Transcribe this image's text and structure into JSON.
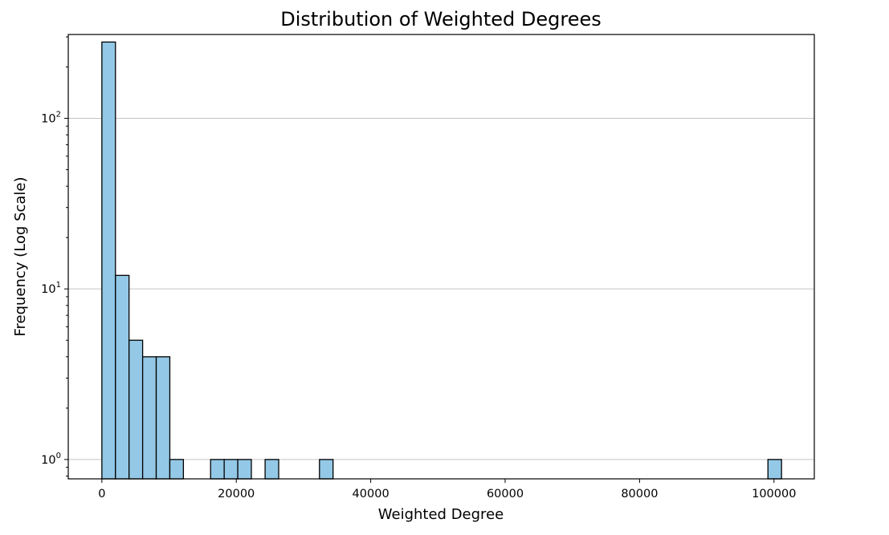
{
  "chart_data": {
    "type": "bar",
    "title": "Distribution of Weighted Degrees",
    "xlabel": "Weighted Degree",
    "ylabel": "Frequency (Log Scale)",
    "xlim": [
      -5000,
      106000
    ],
    "ylim": [
      0.77,
      310
    ],
    "y_scale": "log",
    "grid": "y",
    "bar_color": "#93c8e6",
    "edge_color": "#000000",
    "grid_color": "#c4c4c4",
    "x_ticks": [
      {
        "value": 0,
        "label": "0"
      },
      {
        "value": 20000,
        "label": "20000"
      },
      {
        "value": 40000,
        "label": "40000"
      },
      {
        "value": 60000,
        "label": "60000"
      },
      {
        "value": 80000,
        "label": "80000"
      },
      {
        "value": 100000,
        "label": "100000"
      }
    ],
    "y_ticks": [
      {
        "value": 1,
        "base": "10",
        "exp": "0"
      },
      {
        "value": 10,
        "base": "10",
        "exp": "1"
      },
      {
        "value": 100,
        "base": "10",
        "exp": "2"
      }
    ],
    "bins": [
      {
        "x0": 0,
        "x1": 2022,
        "count": 280
      },
      {
        "x0": 2022,
        "x1": 4044,
        "count": 12
      },
      {
        "x0": 4044,
        "x1": 6066,
        "count": 5
      },
      {
        "x0": 6066,
        "x1": 8088,
        "count": 4
      },
      {
        "x0": 8088,
        "x1": 10110,
        "count": 4
      },
      {
        "x0": 10110,
        "x1": 12132,
        "count": 1
      },
      {
        "x0": 16176,
        "x1": 18198,
        "count": 1
      },
      {
        "x0": 18198,
        "x1": 20220,
        "count": 1
      },
      {
        "x0": 20220,
        "x1": 22242,
        "count": 1
      },
      {
        "x0": 24286,
        "x1": 26308,
        "count": 1
      },
      {
        "x0": 32374,
        "x1": 34396,
        "count": 1
      },
      {
        "x0": 99100,
        "x1": 101122,
        "count": 1
      }
    ]
  }
}
